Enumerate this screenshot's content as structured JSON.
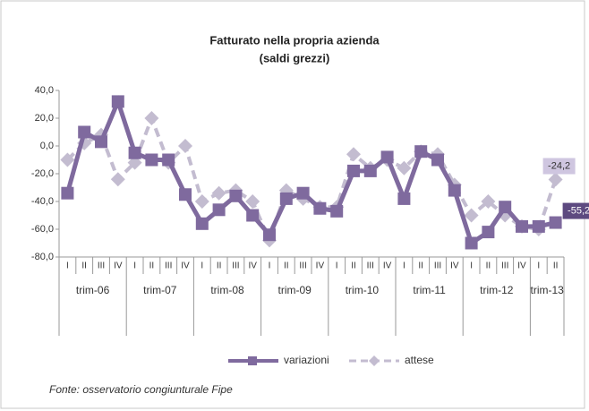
{
  "chart_data": {
    "type": "line",
    "title": "Fatturato nella propria azienda",
    "subtitle": "(saldi grezzi)",
    "categories": [
      "I",
      "II",
      "III",
      "IV",
      "I",
      "II",
      "III",
      "IV",
      "I",
      "II",
      "III",
      "IV",
      "I",
      "II",
      "III",
      "IV",
      "I",
      "II",
      "III",
      "IV",
      "I",
      "II",
      "III",
      "IV",
      "I",
      "II",
      "III",
      "IV",
      "I",
      "II"
    ],
    "groups": [
      "trim-06",
      "trim-07",
      "trim-08",
      "trim-09",
      "trim-10",
      "trim-11",
      "trim-12",
      "trim-13"
    ],
    "series": [
      {
        "name": "variazioni",
        "color": "#7f6a9e",
        "values": [
          -34,
          10,
          3,
          32,
          -5,
          -10,
          -10,
          -35,
          -56,
          -46,
          -36,
          -50,
          -64,
          -38,
          -34,
          -45,
          -47,
          -18,
          -18,
          -8,
          -38,
          -4,
          -10,
          -32,
          -70,
          -62,
          -44,
          -58,
          -58,
          -55.2
        ],
        "value_labels": [
          null,
          null,
          null,
          null,
          null,
          null,
          null,
          null,
          null,
          null,
          null,
          null,
          null,
          null,
          null,
          null,
          null,
          null,
          null,
          null,
          null,
          null,
          null,
          null,
          null,
          null,
          null,
          null,
          null,
          "-55,2"
        ]
      },
      {
        "name": "attese",
        "color": "#c3bcd0",
        "values": [
          -10,
          2,
          8,
          -24,
          -12,
          20,
          -12,
          0,
          -40,
          -34,
          -32,
          -40,
          -68,
          -32,
          -38,
          -44,
          -44,
          -6,
          -16,
          -10,
          -16,
          -4,
          -6,
          -28,
          -50,
          -40,
          -50,
          -58,
          -60,
          -24.2
        ],
        "value_labels": [
          null,
          null,
          null,
          null,
          null,
          null,
          null,
          null,
          null,
          null,
          null,
          null,
          null,
          null,
          null,
          null,
          null,
          null,
          null,
          null,
          null,
          null,
          null,
          null,
          null,
          null,
          null,
          null,
          null,
          "-24,2"
        ]
      }
    ],
    "ylim": [
      -80,
      40
    ],
    "yticks": [
      {
        "value": 40,
        "label": "40,0"
      },
      {
        "value": 20,
        "label": "20,0"
      },
      {
        "value": 0,
        "label": "0,0"
      },
      {
        "value": -20,
        "label": "-20,0"
      },
      {
        "value": -40,
        "label": "-40,0"
      },
      {
        "value": -60,
        "label": "-60,0"
      },
      {
        "value": -80,
        "label": "-80,0"
      }
    ],
    "grid": false,
    "legend": "bottom",
    "source": "Fonte: osservatorio congiunturale Fipe"
  }
}
